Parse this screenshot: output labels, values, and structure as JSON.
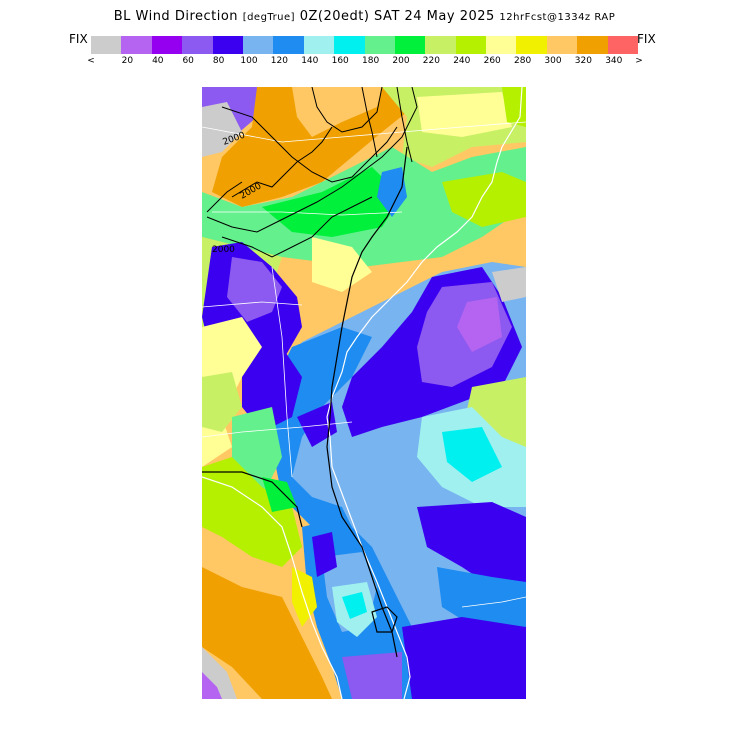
{
  "title": {
    "main": "BL Wind Direction",
    "units": "[degTrue]",
    "valid": "0Z(20edt) SAT 24 May 2025",
    "forecast": "12hrFcst@1334z RAP"
  },
  "legend": {
    "fix_left": "FIX",
    "fix_right": "FIX",
    "less_than": "<",
    "greater_than": ">",
    "colors": [
      "#cccccc",
      "#b464f0",
      "#9600f0",
      "#8c5af0",
      "#3c00f0",
      "#78b4f0",
      "#1e8cf0",
      "#a0f0f0",
      "#00f0f0",
      "#64f08c",
      "#00f03c",
      "#c8f064",
      "#b4f000",
      "#ffff96",
      "#f0f000",
      "#ffc864",
      "#f0a000",
      "#ff6464"
    ],
    "tick_labels": [
      "20",
      "40",
      "60",
      "80",
      "100",
      "120",
      "140",
      "160",
      "180",
      "200",
      "220",
      "240",
      "260",
      "280",
      "300",
      "320",
      "340"
    ]
  },
  "map": {
    "contour_labels": [
      "2000",
      "2000",
      "2000"
    ]
  }
}
